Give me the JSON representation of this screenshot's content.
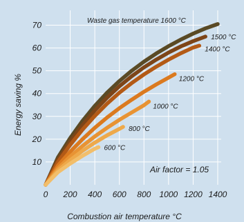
{
  "chart_data": {
    "type": "line",
    "xlabel": "Combustion air temperature °C",
    "ylabel": "Energy saving %",
    "xlim": [
      0,
      1400
    ],
    "ylim": [
      0,
      75
    ],
    "x_ticks": [
      "0",
      "200",
      "400",
      "600",
      "800",
      "1000",
      "1200",
      "1400"
    ],
    "y_ticks": [
      "10",
      "20",
      "30",
      "40",
      "50",
      "60",
      "70"
    ],
    "grid": true,
    "annotation": "Air factor = 1.05",
    "series": [
      {
        "label": "600 °C",
        "color": "#f2be6a",
        "x": [
          0,
          100,
          200,
          300,
          400,
          430
        ],
        "y": [
          0,
          5.5,
          9.3,
          12.7,
          15.8,
          16.5
        ]
      },
      {
        "label": "800 °C",
        "color": "#eea94a",
        "x": [
          0,
          100,
          200,
          300,
          400,
          500,
          600,
          630
        ],
        "y": [
          0,
          6.3,
          10.8,
          14.9,
          18.5,
          21.7,
          24.5,
          25.4
        ]
      },
      {
        "label": "1000 °C",
        "color": "#e89333",
        "x": [
          0,
          100,
          200,
          300,
          400,
          500,
          600,
          700,
          800,
          840
        ],
        "y": [
          0,
          7.2,
          12.4,
          17.0,
          21.2,
          25.0,
          28.5,
          31.7,
          34.9,
          36.5
        ]
      },
      {
        "label": "1200 °C",
        "color": "#db7a1f",
        "x": [
          0,
          100,
          200,
          300,
          400,
          500,
          600,
          700,
          800,
          900,
          1000,
          1050
        ],
        "y": [
          0,
          8.4,
          14.5,
          20.0,
          25.0,
          29.5,
          33.6,
          37.3,
          40.8,
          44.0,
          47.0,
          48.5
        ]
      },
      {
        "label": "1400 °C",
        "color": "#b35a16",
        "x": [
          0,
          100,
          200,
          300,
          400,
          500,
          600,
          700,
          800,
          900,
          1000,
          1100,
          1200,
          1250
        ],
        "y": [
          0,
          10.0,
          17.5,
          24.2,
          30.2,
          35.6,
          40.4,
          44.6,
          48.4,
          51.8,
          54.9,
          57.7,
          60.2,
          61.0
        ]
      },
      {
        "label": "1500 °C",
        "color": "#7d4518",
        "x": [
          0,
          100,
          200,
          300,
          400,
          500,
          600,
          700,
          800,
          900,
          1000,
          1100,
          1200,
          1300
        ],
        "y": [
          0,
          11.0,
          19.0,
          26.2,
          32.6,
          38.2,
          43.2,
          47.6,
          51.5,
          54.9,
          58.0,
          60.7,
          63.0,
          65.0
        ]
      },
      {
        "label": "Waste gas temperature 1600 °C",
        "color": "#5a4a25",
        "x": [
          0,
          100,
          200,
          300,
          400,
          500,
          600,
          700,
          800,
          900,
          1000,
          1100,
          1200,
          1300,
          1400
        ],
        "y": [
          0,
          12.0,
          20.5,
          28.0,
          34.6,
          40.4,
          45.5,
          50.0,
          54.0,
          57.6,
          60.8,
          63.7,
          66.3,
          68.6,
          70.5
        ]
      }
    ]
  }
}
